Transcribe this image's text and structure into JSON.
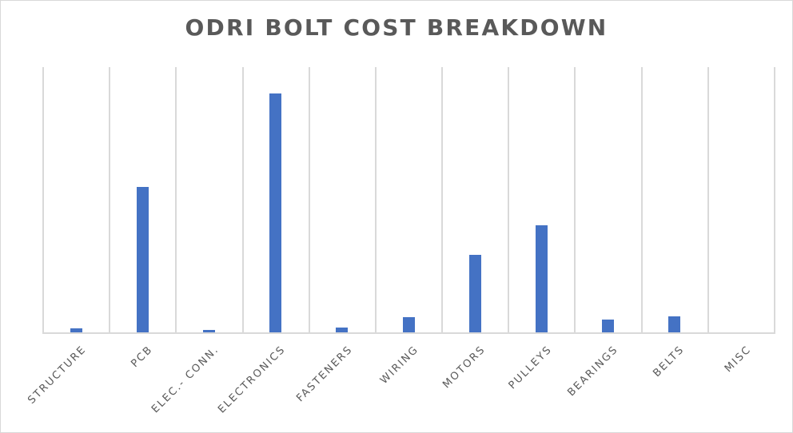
{
  "chart_data": {
    "type": "bar",
    "title": "ODRI BOLT COST BREAKDOWN",
    "xlabel": "",
    "ylabel": "",
    "categories": [
      "STRUCTURE",
      "PCB",
      "ELEC.- CONN.",
      "ELECTRONICS",
      "FASTENERS",
      "WIRING",
      "MOTORS",
      "PULLEYS",
      "BEARINGS",
      "BELTS",
      "MISC"
    ],
    "values": [
      5,
      182,
      3,
      299,
      6,
      19,
      97,
      134,
      16,
      20,
      0
    ],
    "value_units_note": "relative (no y-axis shown); scale where plot height = 332",
    "ylim": [
      0,
      332
    ],
    "grid": {
      "vertical": true,
      "horizontal": false
    },
    "legend": null,
    "bar_color": "#4472c4",
    "gridline_color": "#d9d9d9",
    "text_color": "#595959"
  }
}
